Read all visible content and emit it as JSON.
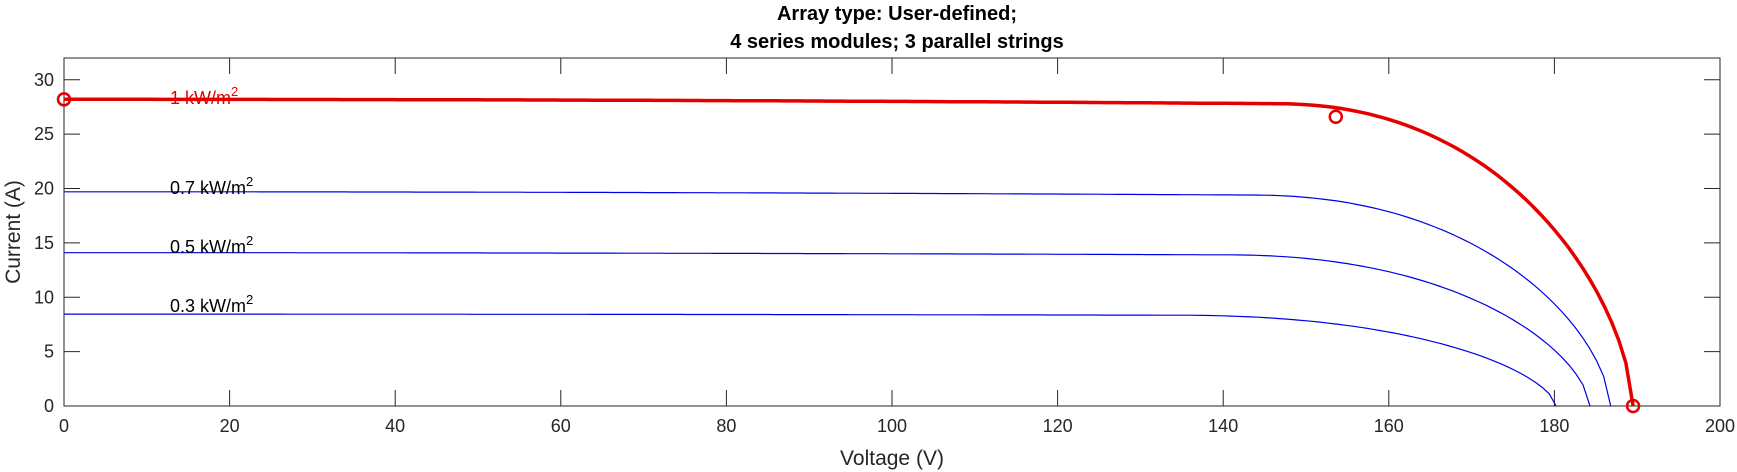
{
  "chart_data": {
    "type": "line",
    "title": [
      "Array type: User-defined;",
      "4 series modules; 3 parallel strings"
    ],
    "xlabel": "Voltage (V)",
    "ylabel": "Current (A)",
    "xlim": [
      0,
      200
    ],
    "ylim": [
      0,
      32
    ],
    "xticks": [
      0,
      20,
      40,
      60,
      80,
      100,
      120,
      140,
      160,
      180,
      200
    ],
    "yticks": [
      0,
      5,
      10,
      15,
      20,
      25,
      30
    ],
    "grid": false,
    "series": [
      {
        "name": "1 kW/m2",
        "label_base": "1 kW/m",
        "label_sup": "2",
        "color": "#e50000",
        "isc": 28.2,
        "voc": 189.5,
        "knee_v": 146,
        "knee_i": 27.8,
        "markers": [
          [
            0,
            28.2
          ],
          [
            153.6,
            26.6
          ],
          [
            189.5,
            0
          ]
        ]
      },
      {
        "name": "0.7 kW/m2",
        "label_base": "0.7 kW/m",
        "label_sup": "2",
        "color": "#0000e6",
        "isc": 19.7,
        "voc": 186.8,
        "knee_v": 143,
        "knee_i": 19.4,
        "markers": []
      },
      {
        "name": "0.5 kW/m2",
        "label_base": "0.5 kW/m",
        "label_sup": "2",
        "color": "#0000e6",
        "isc": 14.1,
        "voc": 184.3,
        "knee_v": 140,
        "knee_i": 13.9,
        "markers": []
      },
      {
        "name": "0.3 kW/m2",
        "label_base": "0.3 kW/m",
        "label_sup": "2",
        "color": "#0000e6",
        "isc": 8.45,
        "voc": 180.2,
        "knee_v": 134,
        "knee_i": 8.35,
        "markers": []
      }
    ]
  }
}
